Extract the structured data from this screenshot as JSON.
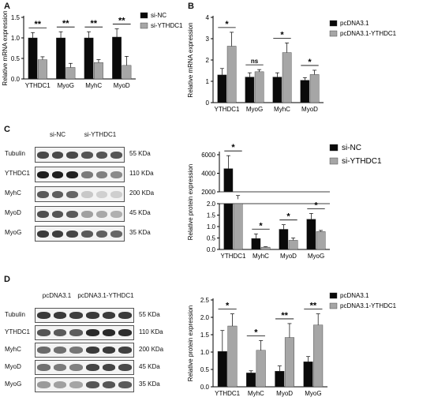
{
  "panels": {
    "A": {
      "letter": "A"
    },
    "B": {
      "letter": "B"
    },
    "C": {
      "letter": "C"
    },
    "D": {
      "letter": "D"
    }
  },
  "colors": {
    "black": "#0a0a0a",
    "grey": "#a6a6a6"
  },
  "chart_data": [
    {
      "id": "A",
      "type": "bar",
      "categories": [
        "YTHDC1",
        "MyoG",
        "MyhC",
        "MyoD"
      ],
      "ylabel": "Relative mRNA expression",
      "ylim": [
        0,
        1.5
      ],
      "yticks": [
        "0.0",
        "0.5",
        "1.0",
        "1.5"
      ],
      "legend_position": "top-right",
      "series": [
        {
          "name": "si-NC",
          "color": "#0a0a0a",
          "values": [
            1.0,
            1.0,
            1.0,
            1.02
          ],
          "errors": [
            0.13,
            0.15,
            0.15,
            0.2
          ]
        },
        {
          "name": "si-YTHDC1",
          "color": "#a6a6a6",
          "values": [
            0.47,
            0.28,
            0.4,
            0.33
          ],
          "errors": [
            0.07,
            0.1,
            0.07,
            0.22
          ]
        }
      ],
      "significance": [
        "**",
        "**",
        "**",
        "**"
      ]
    },
    {
      "id": "B",
      "type": "bar",
      "categories": [
        "YTHDC1",
        "MyoG",
        "MyhC",
        "MyoD"
      ],
      "ylabel": "Relative mRNA expression",
      "ylim": [
        0,
        4
      ],
      "yticks": [
        "0",
        "1",
        "2",
        "3",
        "4"
      ],
      "legend_position": "top-right",
      "series": [
        {
          "name": "pcDNA3.1",
          "color": "#0a0a0a",
          "values": [
            1.3,
            1.2,
            1.2,
            1.05
          ],
          "errors": [
            0.3,
            0.2,
            0.2,
            0.12
          ]
        },
        {
          "name": "pcDNA3.1-YTHDC1",
          "color": "#a6a6a6",
          "values": [
            2.65,
            1.45,
            2.35,
            1.32
          ],
          "errors": [
            0.65,
            0.1,
            0.45,
            0.2
          ]
        }
      ],
      "significance": [
        "*",
        "ns",
        "*",
        "*"
      ]
    },
    {
      "id": "C",
      "type": "bar",
      "categories": [
        "YTHDC1",
        "MyhC",
        "MyoD",
        "MyoG"
      ],
      "ylabel": "Relative protein expression",
      "broken_axis": true,
      "ylim_lower": [
        0,
        2.0
      ],
      "ylim_upper": [
        2000,
        6000
      ],
      "yticks_lower": [
        "0.0",
        "0.5",
        "1.0",
        "1.5",
        "2.0"
      ],
      "yticks_upper": [
        "2000",
        "4000",
        "6000"
      ],
      "legend_position": "top-right",
      "series": [
        {
          "name": "si-NC",
          "color": "#0a0a0a",
          "values": [
            4500,
            0.48,
            0.88,
            1.32
          ],
          "errors": [
            1400,
            0.2,
            0.2,
            0.25
          ]
        },
        {
          "name": "si-YTHDC1",
          "color": "#a6a6a6",
          "values": [
            1200,
            0.1,
            0.4,
            0.78
          ],
          "errors": [
            400,
            0.02,
            0.1,
            0.05
          ]
        }
      ],
      "significance": [
        "*",
        "*",
        "*",
        "*"
      ]
    },
    {
      "id": "D",
      "type": "bar",
      "categories": [
        "YTHDC1",
        "MyhC",
        "MyoD",
        "MyoG"
      ],
      "ylabel": "Relative protein expression",
      "ylim": [
        0,
        2.5
      ],
      "yticks": [
        "0.0",
        "0.5",
        "1.0",
        "1.5",
        "2.0",
        "2.5"
      ],
      "legend_position": "top-right",
      "series": [
        {
          "name": "pcDNA3.1",
          "color": "#0a0a0a",
          "values": [
            1.02,
            0.4,
            0.45,
            0.72
          ],
          "errors": [
            0.6,
            0.06,
            0.15,
            0.15
          ]
        },
        {
          "name": "pcDNA3.1-YTHDC1",
          "color": "#a6a6a6",
          "values": [
            1.75,
            1.05,
            1.42,
            1.78
          ],
          "errors": [
            0.35,
            0.28,
            0.4,
            0.32
          ]
        }
      ],
      "significance": [
        "*",
        "*",
        "**",
        "**"
      ]
    }
  ],
  "blots": {
    "C": {
      "groups": [
        "si-NC",
        "si-YTHDC1"
      ],
      "rows": [
        {
          "protein": "Tubulin",
          "kda": "55 KDa"
        },
        {
          "protein": "YTHDC1",
          "kda": "110 KDa"
        },
        {
          "protein": "MyhC",
          "kda": "200 KDa"
        },
        {
          "protein": "MyoD",
          "kda": "45 KDa"
        },
        {
          "protein": "MyoG",
          "kda": "35 KDa"
        }
      ]
    },
    "D": {
      "groups": [
        "pcDNA3.1",
        "pcDNA3.1-YTHDC1"
      ],
      "rows": [
        {
          "protein": "Tubulin",
          "kda": "55 KDa"
        },
        {
          "protein": "YTHDC1",
          "kda": "110 KDa"
        },
        {
          "protein": "MyhC",
          "kda": "200 KDa"
        },
        {
          "protein": "MyoD",
          "kda": "45 KDa"
        },
        {
          "protein": "MyoG",
          "kda": "35 KDa"
        }
      ]
    }
  }
}
